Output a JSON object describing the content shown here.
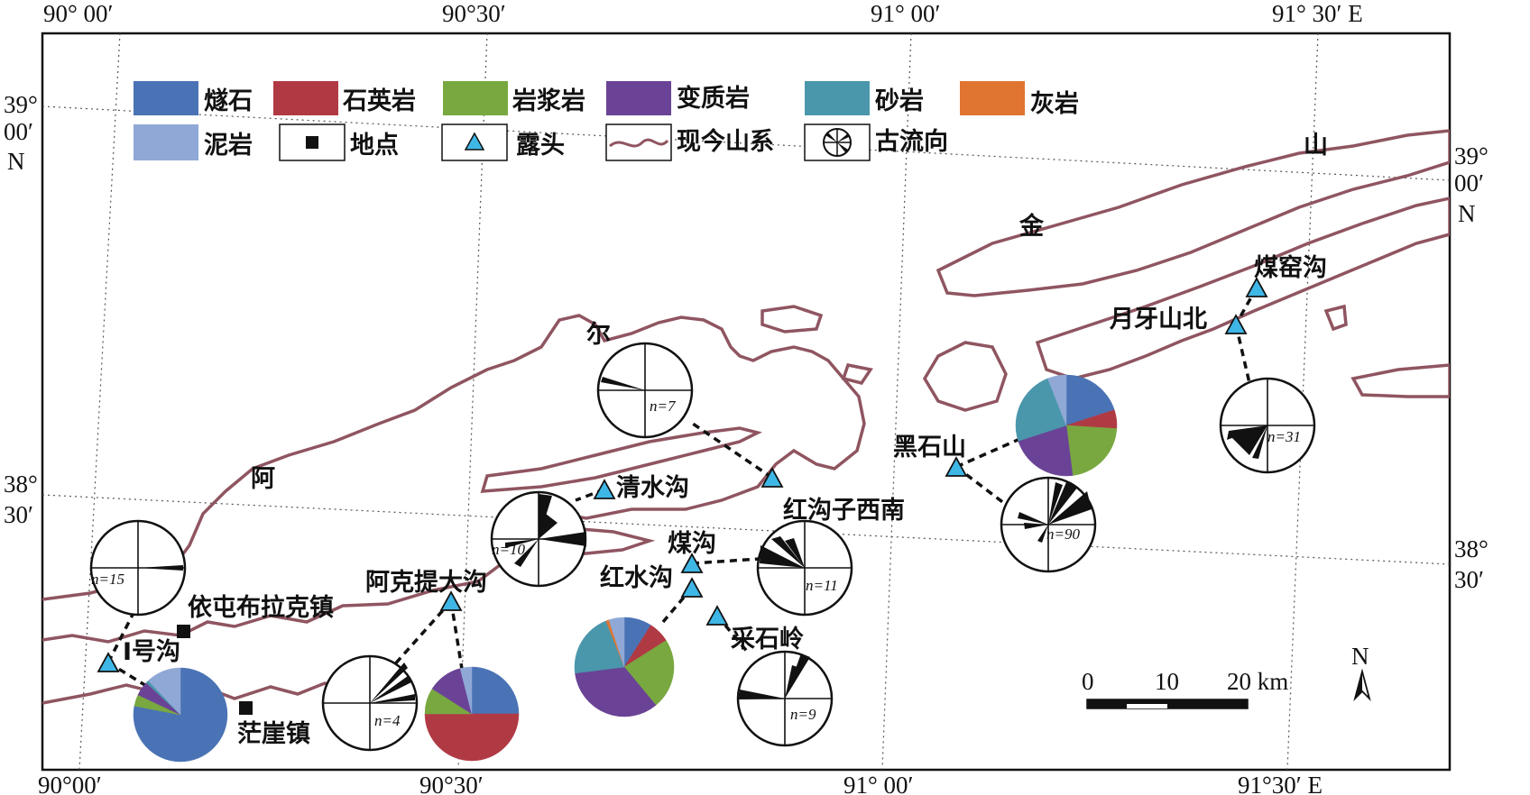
{
  "legend": {
    "items": [
      {
        "key": "flint",
        "label": "燧石",
        "color": "#4a73b5"
      },
      {
        "key": "quartzite",
        "label": "石英岩",
        "color": "#b03a44"
      },
      {
        "key": "magmatic",
        "label": "岩浆岩",
        "color": "#79a840"
      },
      {
        "key": "metamorphic",
        "label": "变质岩",
        "color": "#6a4396"
      },
      {
        "key": "sandstone",
        "label": "砂岩",
        "color": "#4a97ab"
      },
      {
        "key": "limestone",
        "label": "灰岩",
        "color": "#e07531"
      },
      {
        "key": "mudstone",
        "label": "泥岩",
        "color": "#8fa8d6"
      },
      {
        "key": "site",
        "label": "地点"
      },
      {
        "key": "outcrop",
        "label": "露头"
      },
      {
        "key": "mountain",
        "label": "现今山系"
      },
      {
        "key": "paleoflow",
        "label": "古流向"
      }
    ]
  },
  "axes": {
    "top": [
      "90°  00′",
      "90°30′",
      "91°  00′",
      "91°  30′ E"
    ],
    "bottom": [
      "90°00′",
      "90°30′",
      "91°  00′",
      "91°30′  E"
    ],
    "left_top": [
      "39°",
      "00′",
      "N"
    ],
    "left_mid": [
      "38°",
      "30′"
    ],
    "right_top": [
      "39°",
      "00′",
      "N"
    ],
    "right_mid": [
      "38°",
      "30′"
    ]
  },
  "mountain_chars": [
    "阿",
    "尔",
    "金",
    "山"
  ],
  "places": {
    "outcrops": [
      "I号沟",
      "阿克提大沟",
      "清水沟",
      "煤沟",
      "红水沟",
      "采石岭",
      "红沟子西南",
      "黑石山",
      "月牙山北",
      "煤窑沟"
    ],
    "towns": [
      "依屯布拉克镇",
      "茫崖镇"
    ]
  },
  "rose_labels": [
    "n=15",
    "n=4",
    "n=10",
    "n=7",
    "n=11",
    "n=9",
    "n=90",
    "n=31"
  ],
  "pies": [
    {
      "name": "I号沟",
      "slices": {
        "flint": 78,
        "magmatic": 4,
        "metamorphic": 5,
        "sandstone": 1,
        "mudstone": 12
      }
    },
    {
      "name": "阿克提大沟",
      "slices": {
        "flint": 25,
        "quartzite": 50,
        "magmatic": 9,
        "metamorphic": 12,
        "mudstone": 4
      }
    },
    {
      "name": "红水沟",
      "slices": {
        "flint": 9,
        "quartzite": 7,
        "magmatic": 23,
        "metamorphic": 34,
        "sandstone": 21,
        "limestone": 1,
        "mudstone": 5
      }
    },
    {
      "name": "黑石山",
      "slices": {
        "flint": 20,
        "quartzite": 6,
        "magmatic": 22,
        "metamorphic": 22,
        "sandstone": 24,
        "mudstone": 6
      }
    }
  ],
  "scale": {
    "labels": [
      "0",
      "10",
      "20 km"
    ]
  },
  "north": "N"
}
